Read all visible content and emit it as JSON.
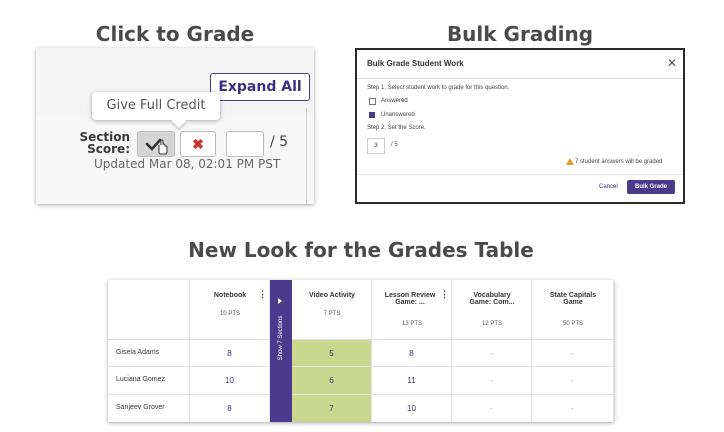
{
  "headings": {
    "click_to_grade": "Click to Grade",
    "bulk_grading": "Bulk Grading",
    "new_look": "New Look for the Grades Table"
  },
  "click_to_grade": {
    "expand_all": "Expand All",
    "tooltip": "Give Full Credit",
    "section_label_1": "Section",
    "section_label_2": "Score:",
    "check_icon": "check-icon",
    "x_icon": "x-icon",
    "x_glyph": "✖",
    "score_value": "",
    "score_total": "/ 5",
    "updated": "Updated Mar 08, 02:01 PM PST",
    "colors": {
      "accent": "#4b3a8c",
      "danger": "#d0302a"
    }
  },
  "bulk": {
    "title": "Bulk Grade Student Work",
    "close": "✕",
    "step1": "Step 1: Select student work to grade for this question.",
    "option_answered": "Answered",
    "option_unanswered": "Unanswered",
    "step2": "Step 2: Set the Score.",
    "score_value": "3",
    "score_total": "/ 5",
    "warning": "7 student answers will be graded",
    "cancel": "Cancel",
    "bulk_grade": "Bulk Grade"
  },
  "grades_table": {
    "show_sections": "Show 7 Sections",
    "columns": [
      {
        "title": "Notebook",
        "pts": "10 PTS",
        "kebab": "⋮"
      },
      {
        "title": "Video Activity",
        "pts": "7 PTS",
        "kebab": ""
      },
      {
        "title": "Lesson Review Game: ...",
        "pts": "13 PTS",
        "kebab": "⋮"
      },
      {
        "title": "Vocabulary Game: Com...",
        "pts": "12 PTS",
        "kebab": ""
      },
      {
        "title": "State Capitals Game",
        "pts": "50 PTS",
        "kebab": ""
      }
    ],
    "rows": [
      {
        "name": "Gisela Adams",
        "values": [
          "8",
          "5",
          "8",
          "-",
          "-"
        ]
      },
      {
        "name": "Luciana Gomez",
        "values": [
          "10",
          "6",
          "11",
          "-",
          "-"
        ]
      },
      {
        "name": "Sanjeev Grover",
        "values": [
          "8",
          "7",
          "10",
          "-",
          "-"
        ]
      }
    ],
    "colors": {
      "band": "#4b3a8c",
      "highlight": "#c9d88e"
    }
  }
}
